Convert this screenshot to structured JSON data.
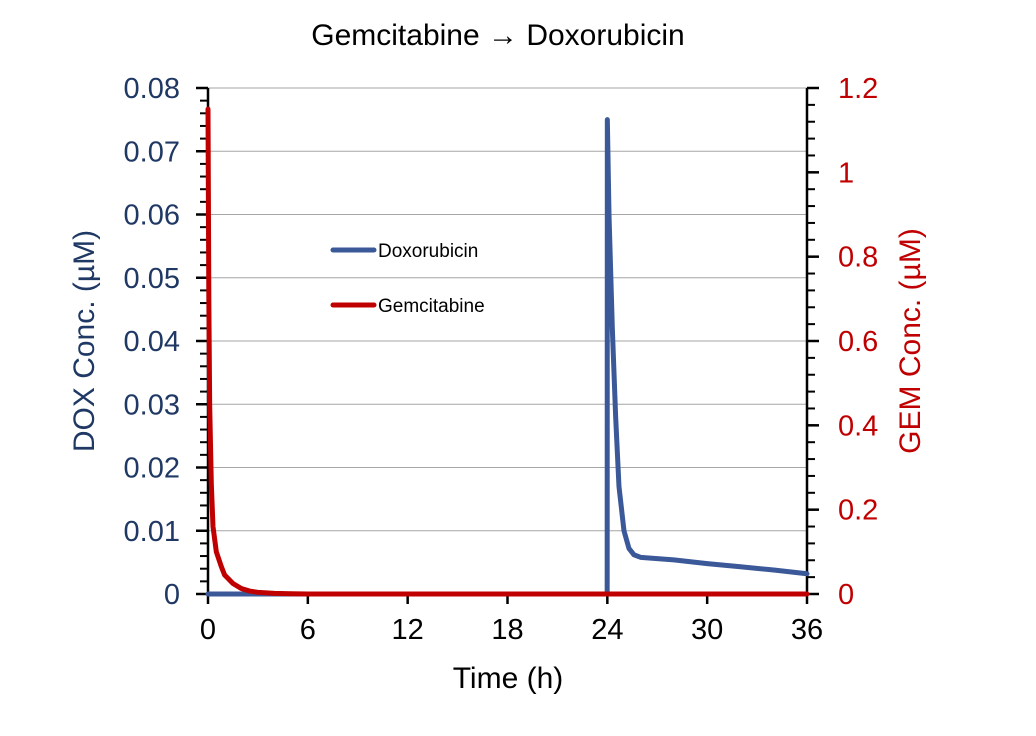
{
  "chart_data": {
    "type": "line",
    "title": "Gemcitabine → Doxorubicin",
    "xlabel": "Time (h)",
    "ylabel_left": "DOX Conc. (µM)",
    "ylabel_right": "GEM Conc. (µM)",
    "xlim": [
      0,
      36
    ],
    "ylim_left": [
      0,
      0.08
    ],
    "ylim_right": [
      0,
      1.2
    ],
    "x_ticks": [
      "0",
      "6",
      "12",
      "18",
      "24",
      "30",
      "36"
    ],
    "y_left_ticks": [
      "0",
      "0.01",
      "0.02",
      "0.03",
      "0.04",
      "0.05",
      "0.06",
      "0.07",
      "0.08"
    ],
    "y_right_ticks": [
      "0",
      "0.2",
      "0.4",
      "0.6",
      "0.8",
      "1",
      "1.2"
    ],
    "grid": true,
    "legend_position": "upper-left-center",
    "colors": {
      "doxorubicin": "#3b5998",
      "gemcitabine": "#c00000",
      "left_axis": "#1f3864",
      "right_axis": "#c00000"
    },
    "series": [
      {
        "name": "Doxorubicin",
        "axis": "left",
        "x": [
          0,
          23.99,
          24,
          24.1,
          24.3,
          24.5,
          24.7,
          25.0,
          25.3,
          25.6,
          26.0,
          27,
          28,
          30,
          32,
          34,
          36
        ],
        "y": [
          0,
          0,
          0.075,
          0.06,
          0.042,
          0.028,
          0.017,
          0.01,
          0.0072,
          0.0062,
          0.0058,
          0.0056,
          0.0054,
          0.0048,
          0.0043,
          0.0038,
          0.0032
        ]
      },
      {
        "name": "Gemcitabine",
        "axis": "right",
        "x": [
          0,
          0.05,
          0.1,
          0.2,
          0.3,
          0.5,
          0.8,
          1.0,
          1.5,
          2.0,
          2.5,
          3.0,
          4.0,
          5.0,
          6,
          12,
          18,
          24,
          30,
          36
        ],
        "y": [
          1.15,
          0.7,
          0.45,
          0.26,
          0.16,
          0.1,
          0.065,
          0.045,
          0.025,
          0.013,
          0.007,
          0.004,
          0.0015,
          0.0005,
          0,
          0,
          0,
          0,
          0,
          0
        ]
      }
    ]
  }
}
